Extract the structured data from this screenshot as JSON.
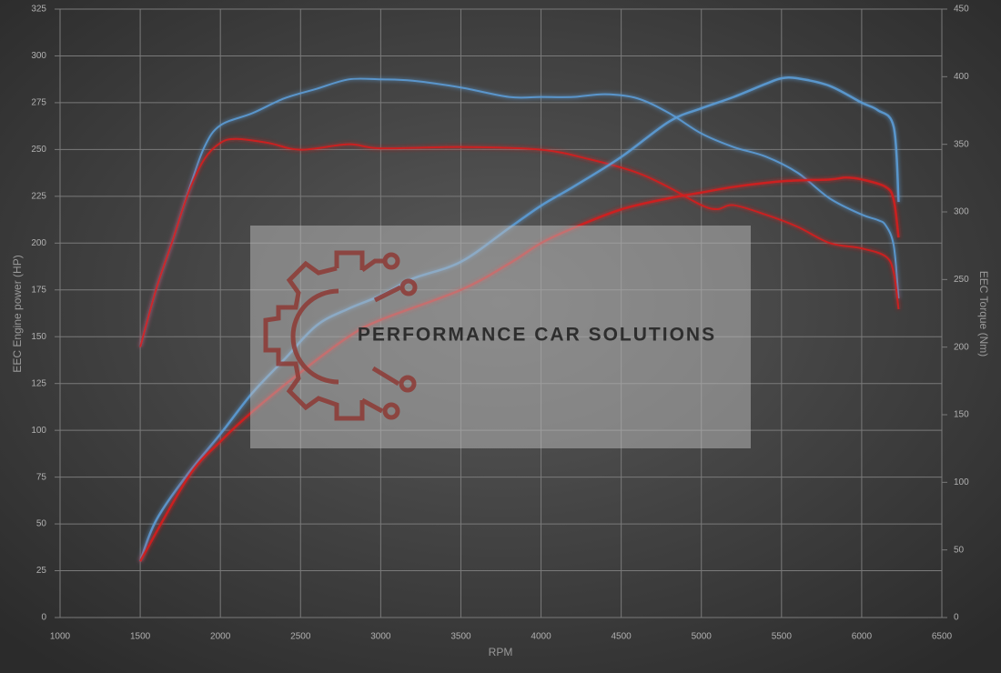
{
  "chart_data": {
    "type": "line",
    "x_label": "RPM",
    "y_label": "EEC Engine power (HP)",
    "y2_label": "EEC Torque (Nm)",
    "watermark": "PERFORMANCE CAR SOLUTIONS",
    "xlim": [
      1000,
      6500
    ],
    "xticks": [
      1000,
      1500,
      2000,
      2500,
      3000,
      3500,
      4000,
      4500,
      5000,
      5500,
      6000,
      6500
    ],
    "ylim": [
      0,
      325
    ],
    "yticks": [
      0,
      25,
      50,
      75,
      100,
      125,
      150,
      175,
      200,
      225,
      250,
      275,
      300,
      325
    ],
    "y2lim": [
      0,
      450
    ],
    "y2ticks": [
      0,
      50,
      100,
      150,
      200,
      250,
      300,
      350,
      400,
      450
    ],
    "grid": true,
    "series": [
      {
        "color": "#5b9bd5",
        "axis": "y2",
        "x": [
          1500,
          1600,
          1700,
          1800,
          1900,
          2000,
          2200,
          2400,
          2600,
          2800,
          3000,
          3200,
          3500,
          3800,
          4000,
          4200,
          4400,
          4600,
          4800,
          5000,
          5200,
          5400,
          5600,
          5800,
          6000,
          6100,
          6150,
          6200,
          6230
        ],
        "values": [
          200,
          243,
          278,
          315,
          348,
          364,
          373,
          384,
          391,
          398,
          398,
          397,
          392,
          385,
          385,
          385,
          387,
          384,
          373,
          358,
          348,
          341,
          329,
          310,
          298,
          294,
          290,
          275,
          236
        ]
      },
      {
        "color": "#d42020",
        "axis": "y2",
        "x": [
          1500,
          1600,
          1700,
          1800,
          1900,
          2000,
          2100,
          2300,
          2500,
          2800,
          3000,
          3500,
          4000,
          4300,
          4600,
          4800,
          5000,
          5100,
          5200,
          5400,
          5600,
          5800,
          6000,
          6150,
          6200,
          6230
        ],
        "values": [
          200,
          243,
          278,
          314,
          339,
          351,
          354,
          351,
          346,
          350,
          347,
          348,
          346,
          339,
          329,
          318,
          305,
          302,
          305,
          298,
          289,
          277,
          273,
          267,
          255,
          228
        ]
      },
      {
        "color": "#5b9bd5",
        "axis": "y",
        "x": [
          1500,
          1600,
          1800,
          2000,
          2200,
          2400,
          2600,
          2800,
          3000,
          3200,
          3500,
          3800,
          4000,
          4200,
          4500,
          4800,
          5000,
          5200,
          5400,
          5500,
          5600,
          5800,
          6000,
          6100,
          6200,
          6230
        ],
        "values": [
          30,
          52,
          77,
          98,
          120,
          138,
          156,
          165,
          172,
          181,
          190,
          208,
          220,
          230,
          246,
          265,
          272,
          278,
          285,
          288,
          288,
          284,
          275,
          271,
          262,
          222
        ]
      },
      {
        "color": "#d42020",
        "axis": "y",
        "x": [
          1500,
          1800,
          2000,
          2200,
          2500,
          2800,
          3000,
          3500,
          3800,
          4000,
          4200,
          4500,
          4800,
          5000,
          5200,
          5500,
          5800,
          5900,
          6000,
          6150,
          6200,
          6230
        ],
        "values": [
          30,
          75,
          94,
          110,
          131,
          150,
          159,
          175,
          189,
          200,
          208,
          218,
          224,
          227,
          230,
          233,
          234,
          235,
          234,
          230,
          223,
          203
        ]
      }
    ]
  }
}
